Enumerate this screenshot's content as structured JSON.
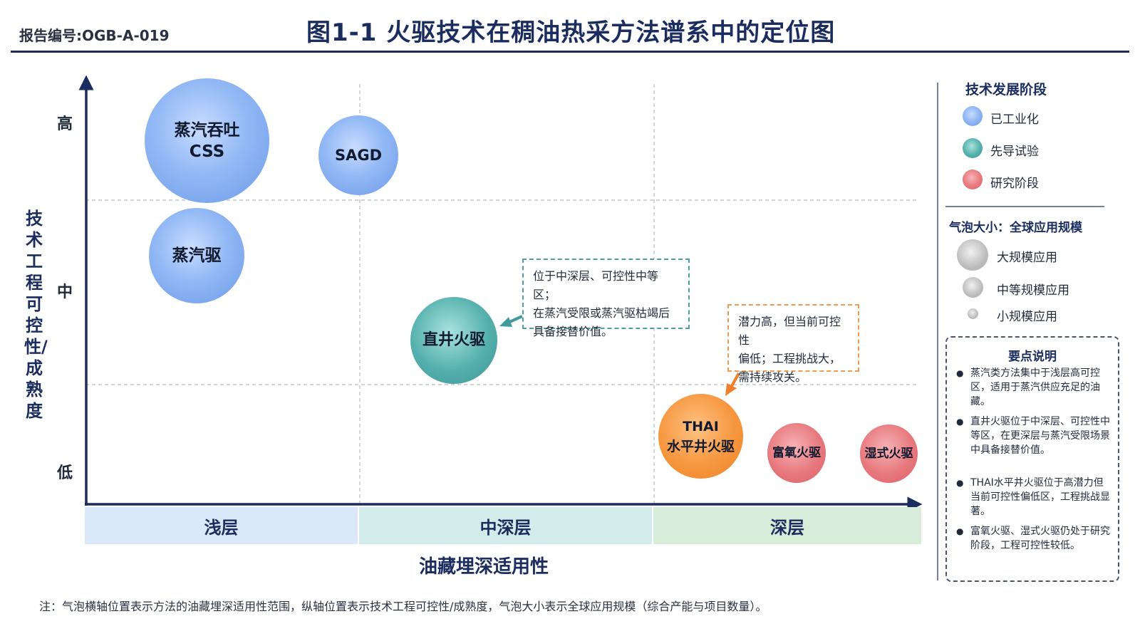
{
  "header": {
    "report_no": "报告编号:OGB-A-019",
    "title": "图1-1  火驱技术在稠油热采方法谱系中的定位图"
  },
  "axes": {
    "y_title": "技术工程可控性/成熟度",
    "y_ticks": {
      "high": "高",
      "mid": "中",
      "low": "低"
    },
    "x_zones": {
      "shallow": "浅层",
      "mid_deep": "中深层",
      "deep": "深层"
    },
    "x_title": "油藏埋深适用性"
  },
  "bubbles": {
    "css": {
      "line1": "蒸汽吞吐",
      "line2": "CSS",
      "stage": "已工业化",
      "scale": "大规模应用"
    },
    "sagd": {
      "label": "SAGD",
      "stage": "已工业化",
      "scale": "中等规模应用"
    },
    "steam_drive": {
      "label": "蒸汽驱",
      "stage": "已工业化",
      "scale": "大规模应用"
    },
    "vertical": {
      "label": "直井火驱",
      "stage": "先导试验",
      "scale": "中等规模应用"
    },
    "thai": {
      "line1": "THAI",
      "line2": "水平井火驱",
      "stage": "先导试验",
      "scale": "中等规模应用"
    },
    "oxygen": {
      "label": "富氧火驱",
      "stage": "研究阶段",
      "scale": "小规模应用"
    },
    "wet": {
      "label": "湿式火驱",
      "stage": "研究阶段",
      "scale": "小规模应用"
    }
  },
  "callouts": {
    "vertical": [
      "位于中深层、可控性中等区；",
      "在蒸汽受限或蒸汽驱枯竭后",
      "具备接替价值。"
    ],
    "thai": [
      "潜力高，但当前可控性",
      "偏低；工程挑战大，",
      "需持续攻关。"
    ]
  },
  "legend": {
    "stage_title": "技术发展阶段",
    "stages": {
      "industrial": "已工业化",
      "pilot": "先导试验",
      "research": "研究阶段"
    },
    "size_title": "气泡大小：全球应用规模",
    "sizes": {
      "large": "大规模应用",
      "medium": "中等规模应用",
      "small": "小规模应用"
    }
  },
  "notes": {
    "title": "要点说明",
    "items": [
      "蒸汽类方法集中于浅层高可控区，适用于蒸汽供应充足的油藏。",
      "直井火驱位于中深层、可控性中等区，在更深层与蒸汽受限场景中具备接替价值。",
      "THAI水平井火驱位于高潜力但当前可控性偏低区，工程挑战显著。",
      "富氧火驱、湿式火驱仍处于研究阶段，工程可控性较低。"
    ]
  },
  "footnote": "注：气泡横轴位置表示方法的油藏埋深适用性范围，纵轴位置表示技术工程可控性/成熟度，气泡大小表示全球应用规模（综合产能与项目数量）。",
  "colors": {
    "navy": "#1b2d5e",
    "industrial": "#7aa7ee",
    "pilot": "#4aa6a3",
    "thai": "#f28c33",
    "research": "#e26b71",
    "zone_shallow": "#dbe8f9",
    "zone_mid": "#d2ecec",
    "zone_deep": "#d7ecd9"
  }
}
